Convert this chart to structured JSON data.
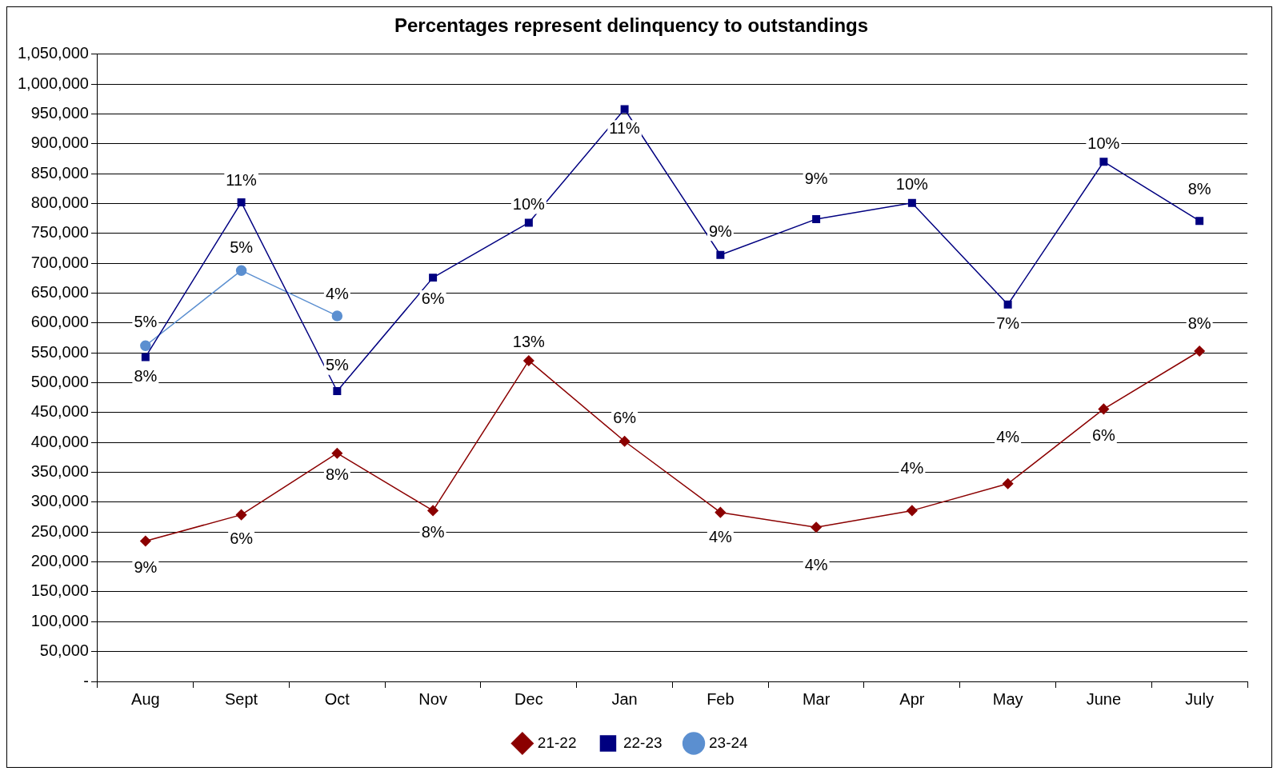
{
  "chart_data": {
    "type": "line",
    "title": "Percentages represent delinquency to outstandings",
    "categories": [
      "Aug",
      "Sept",
      "Oct",
      "Nov",
      "Dec",
      "Jan",
      "Feb",
      "Mar",
      "Apr",
      "May",
      "June",
      "July"
    ],
    "series": [
      {
        "name": "21-22",
        "color": "#8b0000",
        "marker": "diamond",
        "values": [
          235000,
          279000,
          382000,
          286000,
          537000,
          402000,
          283000,
          258000,
          286000,
          331000,
          456000,
          553000
        ]
      },
      {
        "name": "22-23",
        "color": "#000080",
        "marker": "square",
        "values": [
          543000,
          802000,
          486000,
          676000,
          768000,
          958000,
          714000,
          774000,
          801000,
          631000,
          870000,
          771000
        ]
      },
      {
        "name": "23-24",
        "color": "#5b8fd0",
        "marker": "circle",
        "values": [
          562000,
          688000,
          612000,
          null,
          null,
          null,
          null,
          null,
          null,
          null,
          null,
          null
        ]
      }
    ],
    "annotations": [
      {
        "text": "9%",
        "x": "Aug",
        "y": 190000
      },
      {
        "text": "6%",
        "x": "Sept",
        "y": 238000
      },
      {
        "text": "8%",
        "x": "Oct",
        "y": 345000
      },
      {
        "text": "8%",
        "x": "Nov",
        "y": 248000
      },
      {
        "text": "13%",
        "x": "Dec",
        "y": 537000
      },
      {
        "text": "6%",
        "x": "Jan",
        "y": 440000
      },
      {
        "text": "4%",
        "x": "Feb",
        "y": 240000
      },
      {
        "text": "4%",
        "x": "Mar",
        "y": 193000
      },
      {
        "text": "4%",
        "x": "Apr",
        "y": 355000
      },
      {
        "text": "4%",
        "x": "May",
        "y": 408000
      },
      {
        "text": "6%",
        "x": "June",
        "y": 410000
      },
      {
        "text": "8%",
        "x": "July",
        "y": 598000
      },
      {
        "text": "8%",
        "x": "Aug",
        "y": 510000
      },
      {
        "text": "11%",
        "x": "Sept",
        "y": 838000
      },
      {
        "text": "5%",
        "x": "Oct",
        "y": 528000
      },
      {
        "text": "6%",
        "x": "Nov",
        "y": 640000
      },
      {
        "text": "10%",
        "x": "Dec",
        "y": 768000
      },
      {
        "text": "11%",
        "x": "Jan",
        "y": 925000
      },
      {
        "text": "9%",
        "x": "Feb",
        "y": 752000
      },
      {
        "text": "9%",
        "x": "Mar",
        "y": 840000
      },
      {
        "text": "10%",
        "x": "Apr",
        "y": 801000
      },
      {
        "text": "7%",
        "x": "May",
        "y": 598000
      },
      {
        "text": "10%",
        "x": "June",
        "y": 870000
      },
      {
        "text": "8%",
        "x": "July",
        "y": 823000
      },
      {
        "text": "5%",
        "x": "Aug",
        "y": 600000
      },
      {
        "text": "5%",
        "x": "Sept",
        "y": 725000
      },
      {
        "text": "4%",
        "x": "Oct",
        "y": 648000
      }
    ],
    "ylim": [
      0,
      1050000
    ],
    "yticks": [
      {
        "value": 0,
        "label": "-"
      },
      {
        "value": 50000,
        "label": "50,000"
      },
      {
        "value": 100000,
        "label": "100,000"
      },
      {
        "value": 150000,
        "label": "150,000"
      },
      {
        "value": 200000,
        "label": "200,000"
      },
      {
        "value": 250000,
        "label": "250,000"
      },
      {
        "value": 300000,
        "label": "300,000"
      },
      {
        "value": 350000,
        "label": "350,000"
      },
      {
        "value": 400000,
        "label": "400,000"
      },
      {
        "value": 450000,
        "label": "450,000"
      },
      {
        "value": 500000,
        "label": "500,000"
      },
      {
        "value": 550000,
        "label": "550,000"
      },
      {
        "value": 600000,
        "label": "600,000"
      },
      {
        "value": 650000,
        "label": "650,000"
      },
      {
        "value": 700000,
        "label": "700,000"
      },
      {
        "value": 750000,
        "label": "750,000"
      },
      {
        "value": 800000,
        "label": "800,000"
      },
      {
        "value": 850000,
        "label": "850,000"
      },
      {
        "value": 900000,
        "label": "900,000"
      },
      {
        "value": 950000,
        "label": "950,000"
      },
      {
        "value": 1000000,
        "label": "1,000,000"
      },
      {
        "value": 1050000,
        "label": "1,050,000"
      }
    ],
    "grid": "y",
    "legend": "bottom",
    "line_style": "solid"
  }
}
